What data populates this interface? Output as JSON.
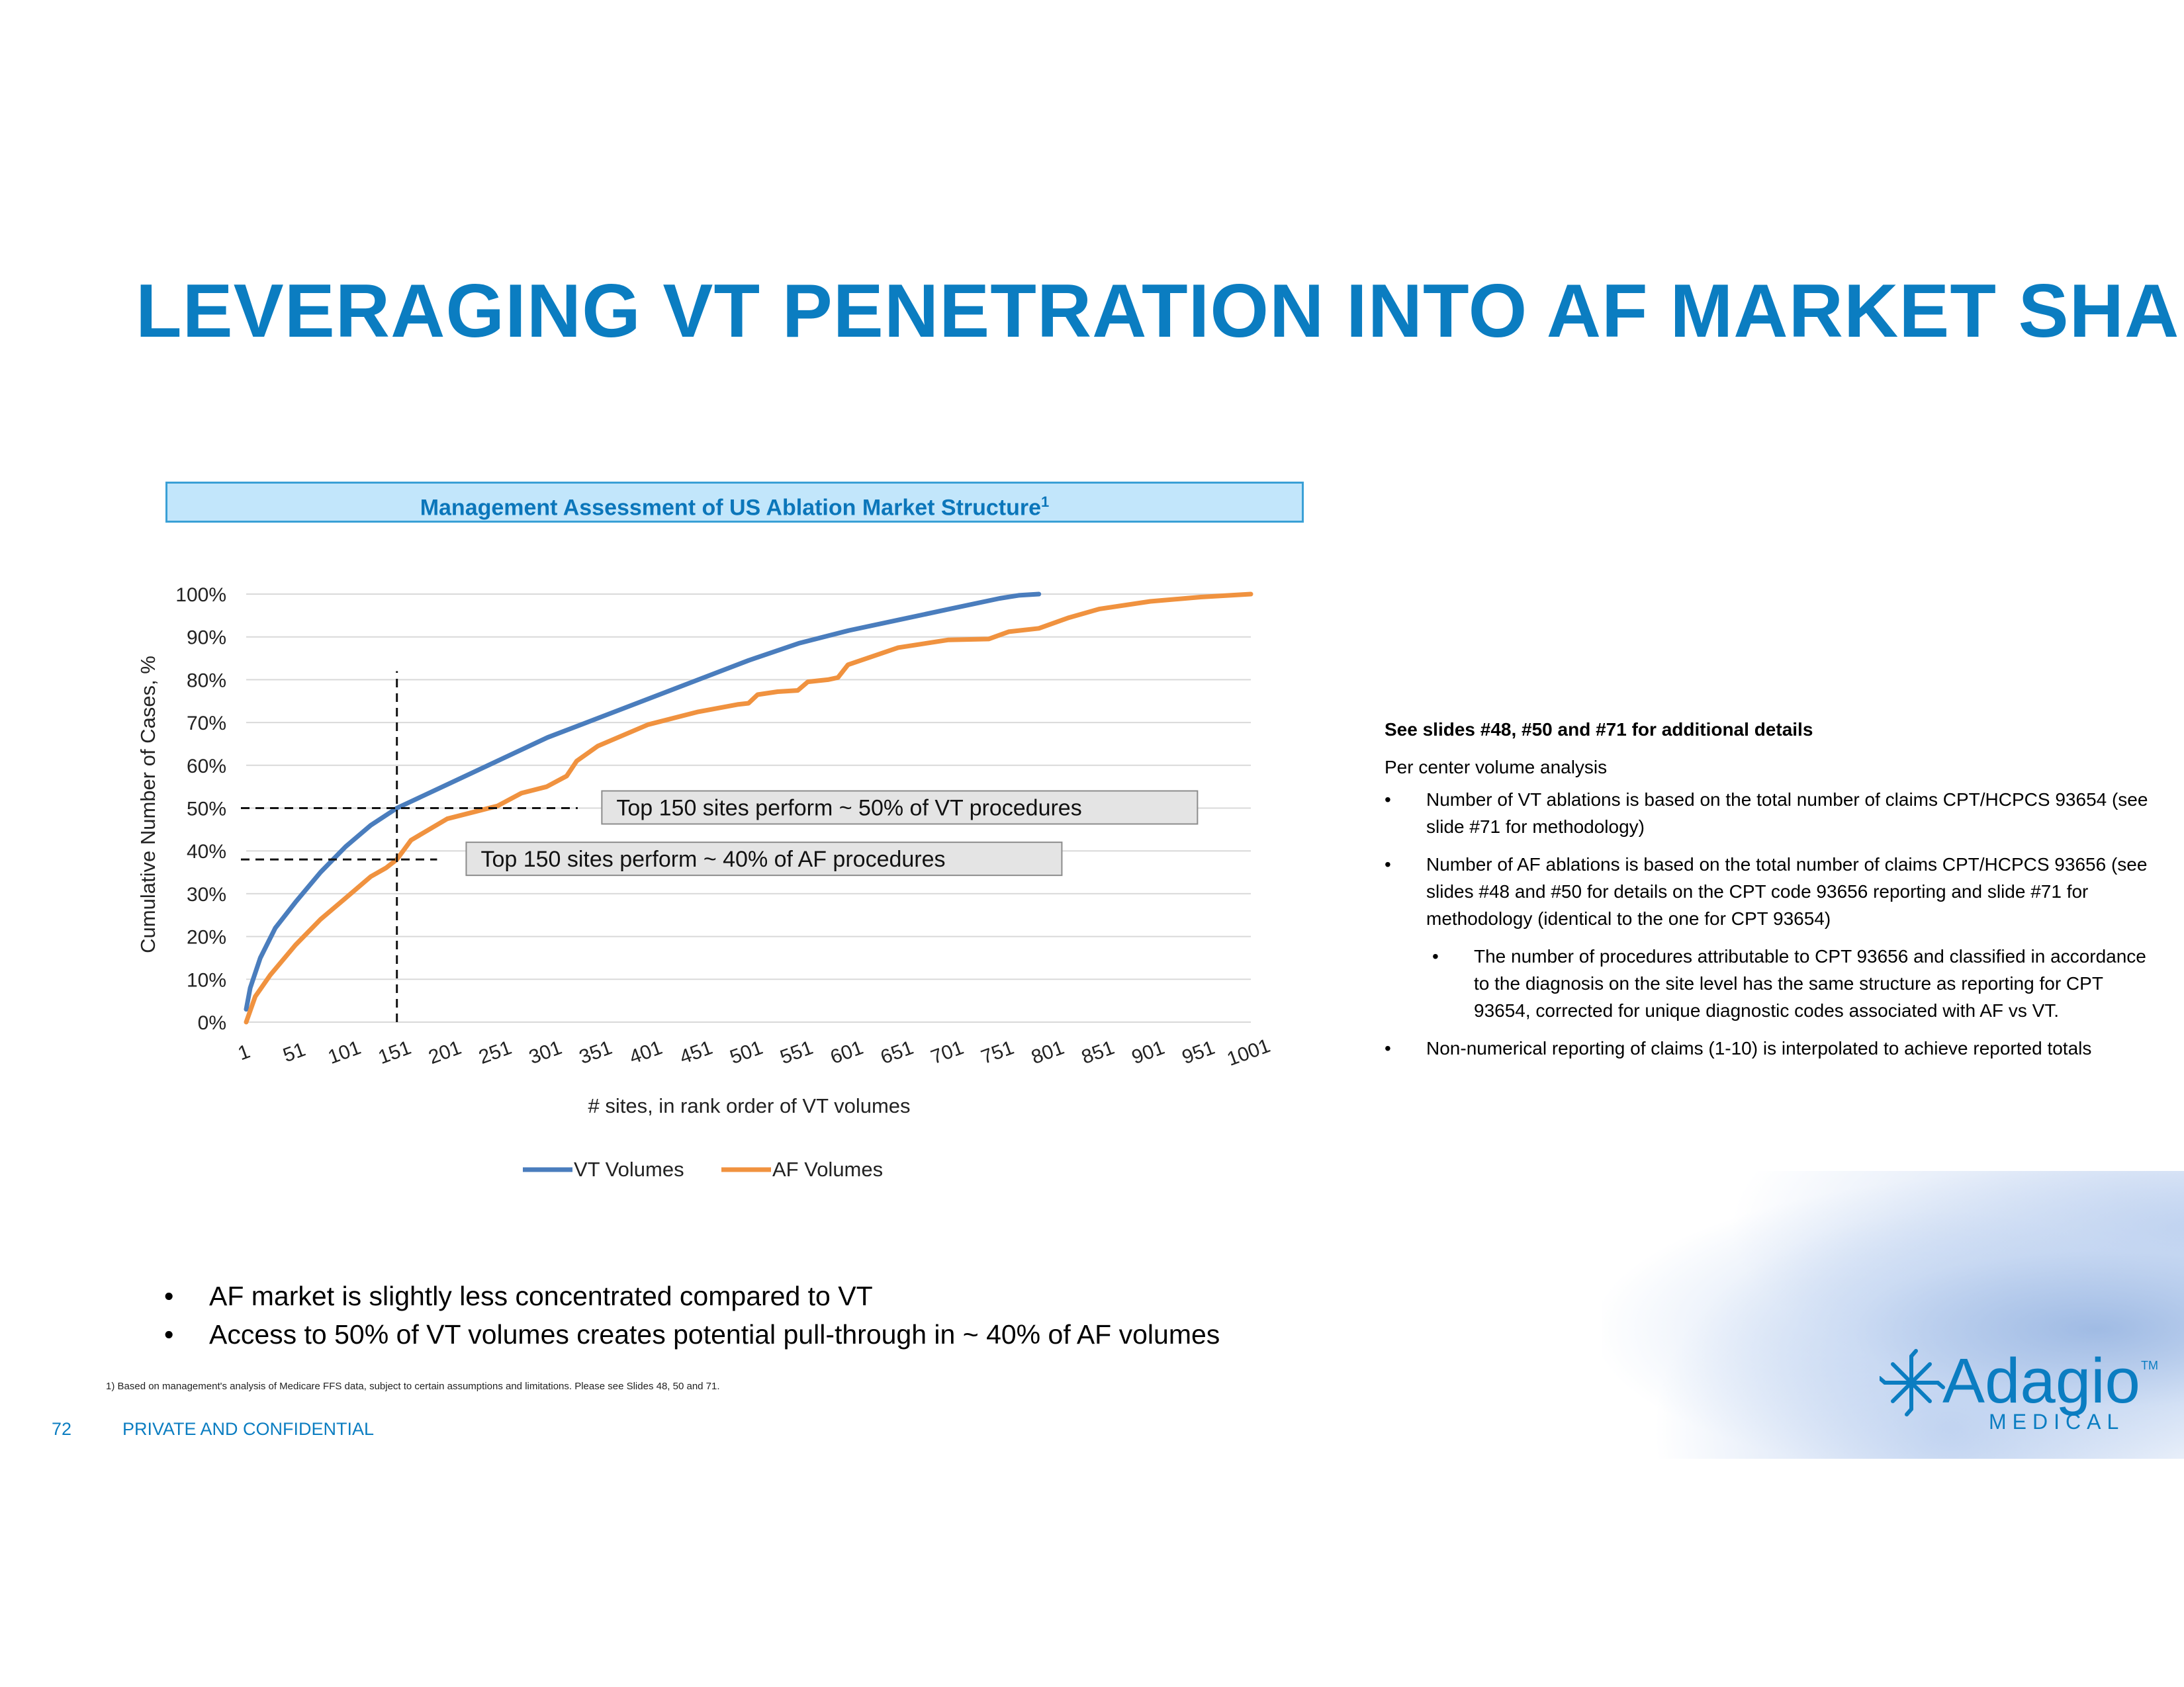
{
  "slide": {
    "title": "LEVERAGING VT PENETRATION INTO AF MARKET SHARE",
    "page_number": "72",
    "confidential": "PRIVATE AND CONFIDENTIAL",
    "footnote": "1)  Based on management's analysis of Medicare FFS data, subject to certain assumptions and limitations. Please see Slides 48, 50 and  71."
  },
  "chart_header": {
    "text": "Management Assessment of US Ablation Market Structure",
    "superscript": "1"
  },
  "notes": {
    "heading": "See slides #48, #50 and #71 for additional details",
    "subheading": "Per center volume analysis",
    "bullets": [
      "Number of VT ablations is based on the total number of claims CPT/HCPCS 93654 (see slide #71 for methodology)",
      "Number of AF ablations is based on the total number of claims CPT/HCPCS 93656 (see slides #48 and #50 for details on the CPT code 93656 reporting and slide #71 for methodology (identical to the one for CPT 93654)"
    ],
    "sub_bullet": "The number of procedures attributable to CPT 93656 and  classified in accordance to the diagnosis on the site level has the same structure as reporting for CPT 93654, corrected for unique diagnostic codes associated with AF vs VT.",
    "last_bullet": "Non-numerical reporting of claims (1-10) is interpolated to achieve reported totals"
  },
  "bottom_bullets": [
    "AF market is slightly less concentrated compared to VT",
    "Access to 50% of VT volumes creates potential pull-through in ~ 40% of AF volumes"
  ],
  "logo": {
    "name": "Adagio",
    "trademark": "TM",
    "subtitle": "MEDICAL"
  },
  "chart_data": {
    "type": "line",
    "xlabel": "# sites, in rank order of VT volumes",
    "ylabel": "Cumulative Number of Cases, %",
    "x_ticks": [
      "1",
      "51",
      "101",
      "151",
      "201",
      "251",
      "301",
      "351",
      "401",
      "451",
      "501",
      "551",
      "601",
      "651",
      "701",
      "751",
      "801",
      "851",
      "901",
      "951",
      "1001"
    ],
    "y_ticks": [
      "0%",
      "10%",
      "20%",
      "30%",
      "40%",
      "50%",
      "60%",
      "70%",
      "80%",
      "90%",
      "100%"
    ],
    "xlim": [
      1,
      1001
    ],
    "ylim": [
      0,
      100
    ],
    "grid": true,
    "legend_position": "bottom",
    "series": [
      {
        "name": "VT Volumes",
        "color": "#4a7dbd",
        "x": [
          1,
          5,
          15,
          30,
          50,
          75,
          100,
          125,
          151,
          201,
          251,
          301,
          351,
          401,
          451,
          501,
          551,
          601,
          651,
          701,
          751,
          770,
          790
        ],
        "y": [
          3,
          8,
          15,
          22,
          28,
          35,
          41,
          46,
          50,
          55.5,
          61,
          66.5,
          71,
          75.5,
          80,
          84.5,
          88.5,
          91.5,
          94,
          96.5,
          99,
          99.7,
          100
        ]
      },
      {
        "name": "AF Volumes",
        "color": "#f0923f",
        "x": [
          1,
          10,
          25,
          50,
          75,
          100,
          125,
          140,
          151,
          165,
          201,
          251,
          275,
          300,
          320,
          330,
          351,
          401,
          451,
          490,
          501,
          510,
          530,
          550,
          560,
          580,
          590,
          600,
          650,
          700,
          740,
          760,
          790,
          820,
          850,
          901,
          951,
          1001
        ],
        "y": [
          0,
          6,
          11,
          18,
          24,
          29,
          34,
          36,
          38,
          42.5,
          47.5,
          50.5,
          53.5,
          55,
          57.5,
          61,
          64.5,
          69.5,
          72.5,
          74.2,
          74.5,
          76.5,
          77.2,
          77.5,
          79.5,
          80,
          80.5,
          83.5,
          87.5,
          89.3,
          89.5,
          91.2,
          92,
          94.5,
          96.5,
          98.3,
          99.3,
          100
        ]
      }
    ],
    "reference_lines": [
      {
        "type": "vertical",
        "x": 151,
        "y_range": [
          0,
          82
        ]
      },
      {
        "type": "horizontal",
        "y": 50,
        "x_range": [
          1,
          331
        ]
      },
      {
        "type": "horizontal",
        "y": 38,
        "x_range": [
          1,
          191
        ]
      }
    ],
    "annotations": [
      {
        "text": "Top 150 sites perform ~ 50% of VT procedures",
        "x": 355,
        "y": 50
      },
      {
        "text": "Top 150 sites perform ~ 40% of AF procedures",
        "x": 220,
        "y": 38
      }
    ]
  }
}
